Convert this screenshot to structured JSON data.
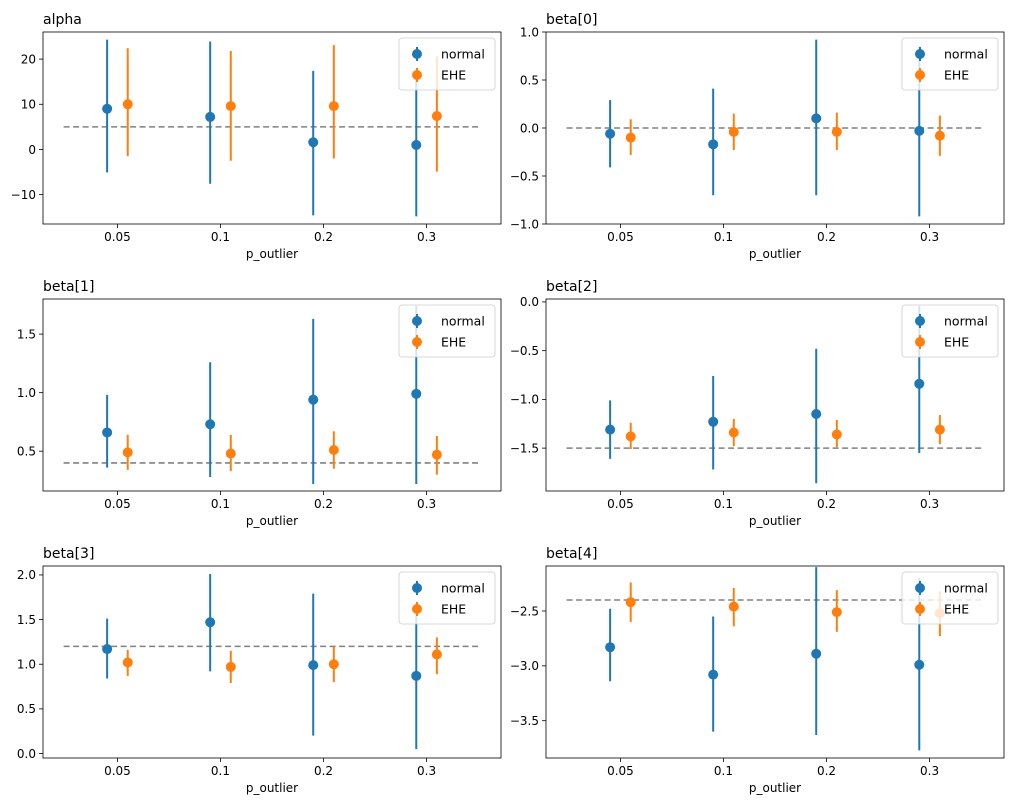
{
  "chart_data": [
    {
      "type": "errorbar",
      "title": "alpha",
      "xlabel": "p_outlier",
      "categories": [
        "0.05",
        "0.1",
        "0.2",
        "0.3"
      ],
      "xlim": [
        0.0,
        1.1
      ],
      "ylim": [
        -16.5,
        26.0
      ],
      "yticks": [
        -10,
        0,
        10,
        20
      ],
      "yticklabels": [
        "−10",
        "0",
        "10",
        "20"
      ],
      "truth": 5.0,
      "series": [
        {
          "name": "normal",
          "color": "#1f77b4",
          "offset": -0.1,
          "values": [
            9.0,
            7.2,
            1.6,
            1.0
          ],
          "lower": [
            -5.1,
            -7.6,
            -14.6,
            -14.8
          ],
          "upper": [
            24.3,
            23.9,
            17.4,
            16.8
          ]
        },
        {
          "name": "EHE",
          "color": "#ff7f0e",
          "offset": 0.1,
          "values": [
            10.0,
            9.6,
            9.6,
            7.4
          ],
          "lower": [
            -1.5,
            -2.5,
            -2.0,
            -4.9
          ],
          "upper": [
            22.4,
            21.8,
            23.1,
            20.6
          ]
        }
      ]
    },
    {
      "type": "errorbar",
      "title": "beta[0]",
      "xlabel": "p_outlier",
      "categories": [
        "0.05",
        "0.1",
        "0.2",
        "0.3"
      ],
      "xlim": [
        0.0,
        1.1
      ],
      "ylim": [
        -1.0,
        1.0
      ],
      "yticks": [
        -1.0,
        -0.5,
        0.0,
        0.5,
        1.0
      ],
      "yticklabels": [
        "−1.0",
        "−0.5",
        "0.0",
        "0.5",
        "1.0"
      ],
      "truth": 0.0,
      "series": [
        {
          "name": "normal",
          "color": "#1f77b4",
          "offset": -0.1,
          "values": [
            -0.06,
            -0.17,
            0.1,
            -0.03
          ],
          "lower": [
            -0.41,
            -0.7,
            -0.7,
            -0.92
          ],
          "upper": [
            0.29,
            0.41,
            0.92,
            0.85
          ]
        },
        {
          "name": "EHE",
          "color": "#ff7f0e",
          "offset": 0.1,
          "values": [
            -0.1,
            -0.04,
            -0.04,
            -0.08
          ],
          "lower": [
            -0.28,
            -0.23,
            -0.23,
            -0.29
          ],
          "upper": [
            0.09,
            0.15,
            0.16,
            0.13
          ]
        }
      ]
    },
    {
      "type": "errorbar",
      "title": "beta[1]",
      "xlabel": "p_outlier",
      "categories": [
        "0.05",
        "0.1",
        "0.2",
        "0.3"
      ],
      "xlim": [
        0.0,
        1.1
      ],
      "ylim": [
        0.16,
        1.8
      ],
      "yticks": [
        0.5,
        1.0,
        1.5
      ],
      "yticklabels": [
        "0.5",
        "1.0",
        "1.5"
      ],
      "truth": 0.4,
      "series": [
        {
          "name": "normal",
          "color": "#1f77b4",
          "offset": -0.1,
          "values": [
            0.66,
            0.73,
            0.94,
            0.99
          ],
          "lower": [
            0.36,
            0.28,
            0.22,
            0.22
          ],
          "upper": [
            0.98,
            1.26,
            1.63,
            1.74
          ]
        },
        {
          "name": "EHE",
          "color": "#ff7f0e",
          "offset": 0.1,
          "values": [
            0.49,
            0.48,
            0.51,
            0.47
          ],
          "lower": [
            0.34,
            0.33,
            0.35,
            0.3
          ],
          "upper": [
            0.64,
            0.64,
            0.67,
            0.63
          ]
        }
      ]
    },
    {
      "type": "errorbar",
      "title": "beta[2]",
      "xlabel": "p_outlier",
      "categories": [
        "0.05",
        "0.1",
        "0.2",
        "0.3"
      ],
      "xlim": [
        0.0,
        1.1
      ],
      "ylim": [
        -1.94,
        0.03
      ],
      "yticks": [
        -1.5,
        -1.0,
        -0.5,
        0.0
      ],
      "yticklabels": [
        "−1.5",
        "−1.0",
        "−0.5",
        "0.0"
      ],
      "truth": -1.5,
      "series": [
        {
          "name": "normal",
          "color": "#1f77b4",
          "offset": -0.1,
          "values": [
            -1.31,
            -1.23,
            -1.15,
            -0.84
          ],
          "lower": [
            -1.61,
            -1.72,
            -1.86,
            -1.55
          ],
          "upper": [
            -1.01,
            -0.76,
            -0.48,
            -0.04
          ]
        },
        {
          "name": "EHE",
          "color": "#ff7f0e",
          "offset": 0.1,
          "values": [
            -1.38,
            -1.34,
            -1.36,
            -1.31
          ],
          "lower": [
            -1.51,
            -1.48,
            -1.49,
            -1.46
          ],
          "upper": [
            -1.24,
            -1.2,
            -1.21,
            -1.16
          ]
        }
      ]
    },
    {
      "type": "errorbar",
      "title": "beta[3]",
      "xlabel": "p_outlier",
      "categories": [
        "0.05",
        "0.1",
        "0.2",
        "0.3"
      ],
      "xlim": [
        0.0,
        1.1
      ],
      "ylim": [
        -0.05,
        2.1
      ],
      "yticks": [
        0.0,
        0.5,
        1.0,
        1.5,
        2.0
      ],
      "yticklabels": [
        "0.0",
        "0.5",
        "1.0",
        "1.5",
        "2.0"
      ],
      "truth": 1.2,
      "series": [
        {
          "name": "normal",
          "color": "#1f77b4",
          "offset": -0.1,
          "values": [
            1.17,
            1.47,
            0.99,
            0.87
          ],
          "lower": [
            0.84,
            0.92,
            0.2,
            0.05
          ],
          "upper": [
            1.51,
            2.01,
            1.79,
            1.68
          ]
        },
        {
          "name": "EHE",
          "color": "#ff7f0e",
          "offset": 0.1,
          "values": [
            1.02,
            0.97,
            1.0,
            1.11
          ],
          "lower": [
            0.87,
            0.79,
            0.8,
            0.89
          ],
          "upper": [
            1.16,
            1.15,
            1.2,
            1.3
          ]
        }
      ]
    },
    {
      "type": "errorbar",
      "title": "beta[4]",
      "xlabel": "p_outlier",
      "categories": [
        "0.05",
        "0.1",
        "0.2",
        "0.3"
      ],
      "xlim": [
        0.0,
        1.1
      ],
      "ylim": [
        -3.84,
        -2.09
      ],
      "yticks": [
        -3.5,
        -3.0,
        -2.5
      ],
      "yticklabels": [
        "−3.5",
        "−3.0",
        "−2.5"
      ],
      "truth": -2.4,
      "series": [
        {
          "name": "normal",
          "color": "#1f77b4",
          "offset": -0.1,
          "values": [
            -2.83,
            -3.08,
            -2.89,
            -2.99
          ],
          "lower": [
            -3.14,
            -3.6,
            -3.63,
            -3.77
          ],
          "upper": [
            -2.48,
            -2.55,
            -2.1,
            -2.2
          ]
        },
        {
          "name": "EHE",
          "color": "#ff7f0e",
          "offset": 0.1,
          "values": [
            -2.42,
            -2.46,
            -2.51,
            -2.52
          ],
          "lower": [
            -2.6,
            -2.64,
            -2.69,
            -2.73
          ],
          "upper": [
            -2.24,
            -2.29,
            -2.31,
            -2.32
          ]
        }
      ]
    }
  ]
}
